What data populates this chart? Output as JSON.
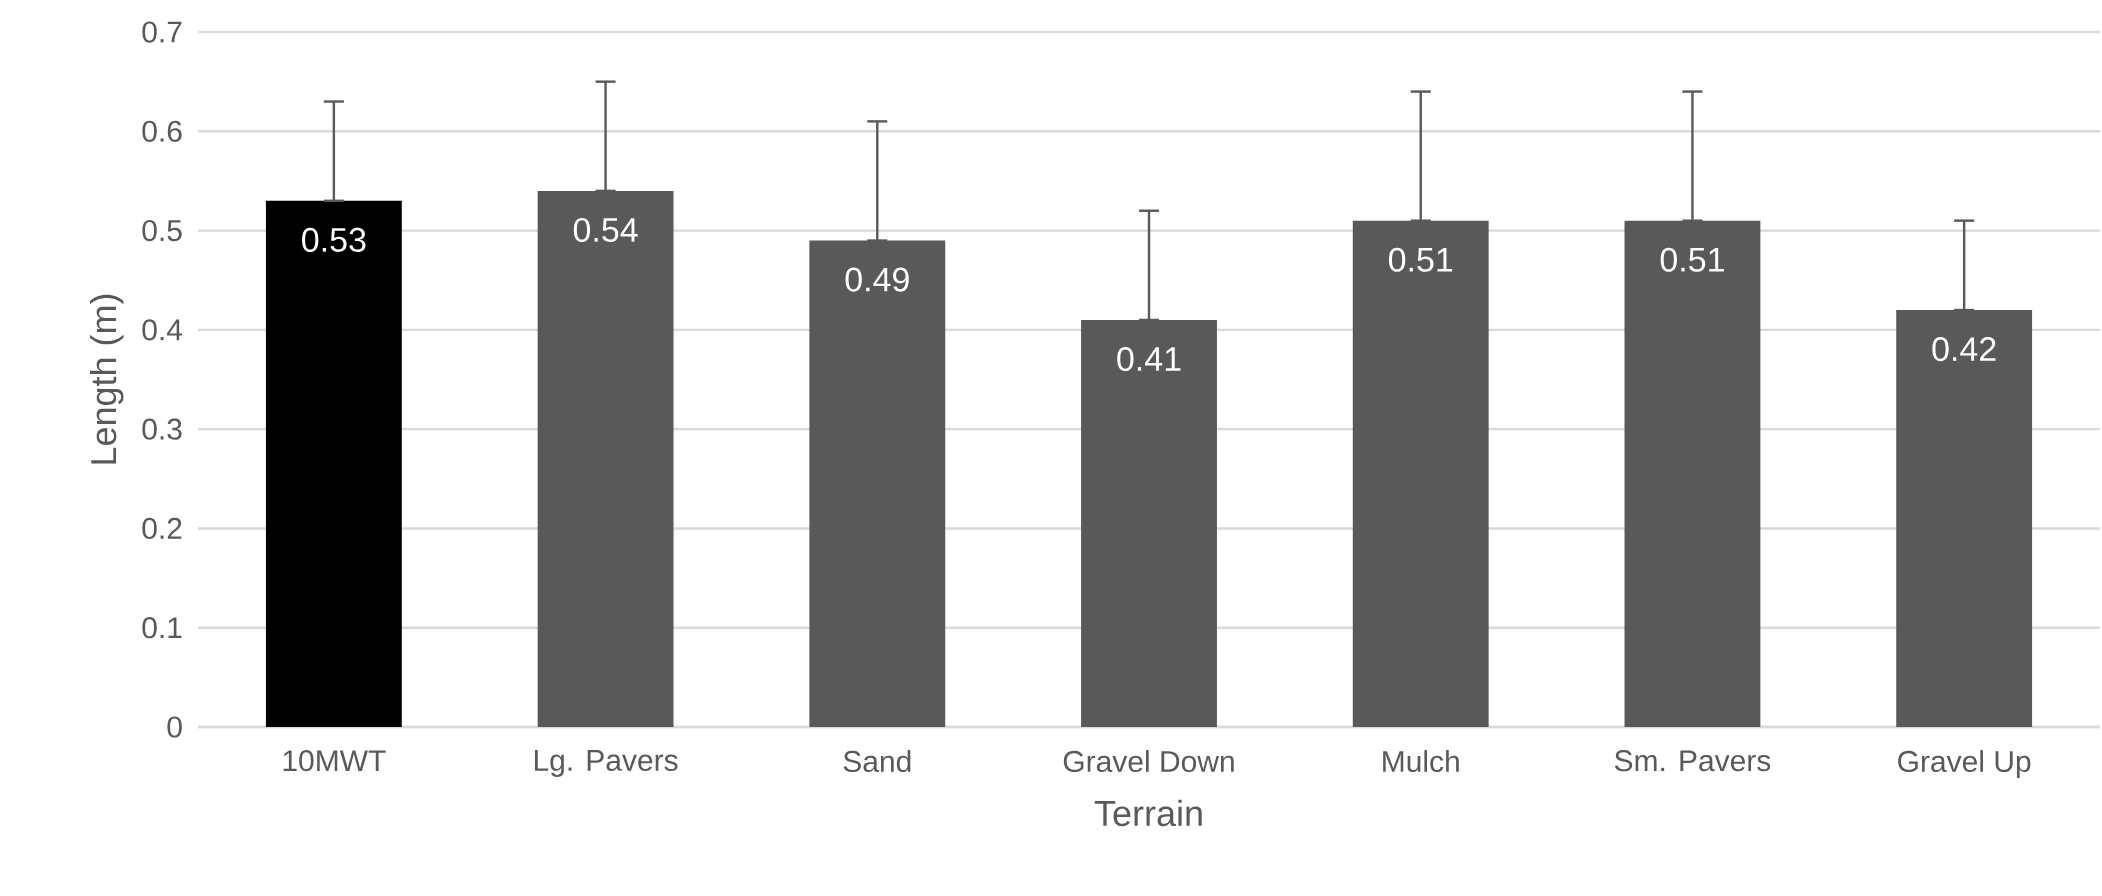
{
  "chart_data": {
    "type": "bar",
    "xlabel": "Terrain",
    "ylabel": "Length (m)",
    "categories": [
      "10MWT",
      "Lg. Pavers",
      "Sand",
      "Gravel Down",
      "Mulch",
      "Sm. Pavers",
      "Gravel Up"
    ],
    "values": [
      0.53,
      0.54,
      0.49,
      0.41,
      0.51,
      0.51,
      0.42
    ],
    "colors": [
      "#000000",
      "#595959",
      "#595959",
      "#595959",
      "#595959",
      "#595959",
      "#595959"
    ],
    "errors": [
      [
        0.53,
        0.63
      ],
      [
        0.54,
        0.65
      ],
      [
        0.49,
        0.61
      ],
      [
        0.41,
        0.52
      ],
      [
        0.51,
        0.64
      ],
      [
        0.51,
        0.64
      ],
      [
        0.42,
        0.51
      ]
    ],
    "ylim": [
      0,
      0.7
    ],
    "yticks": [
      0,
      0.1,
      0.2,
      0.3,
      0.4,
      0.5,
      0.6,
      0.7
    ],
    "grid": "y",
    "data_labels": true
  }
}
